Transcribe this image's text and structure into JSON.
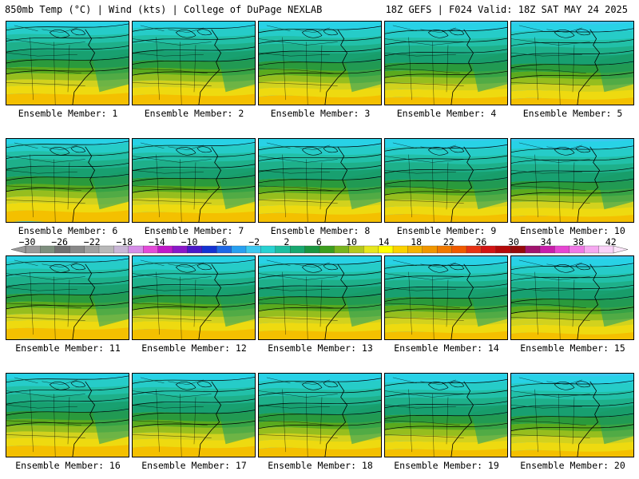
{
  "header": {
    "left_title": "850mb Temp (°C) | Wind (kts) | College of DuPage NEXLAB",
    "right_title": "18Z GEFS | F024 Valid: 18Z SAT MAY 24 2025"
  },
  "panels": [
    {
      "label": "Ensemble Member: 1"
    },
    {
      "label": "Ensemble Member: 2"
    },
    {
      "label": "Ensemble Member: 3"
    },
    {
      "label": "Ensemble Member: 4"
    },
    {
      "label": "Ensemble Member: 5"
    },
    {
      "label": "Ensemble Member: 6"
    },
    {
      "label": "Ensemble Member: 7"
    },
    {
      "label": "Ensemble Member: 8"
    },
    {
      "label": "Ensemble Member: 9"
    },
    {
      "label": "Ensemble Member: 10"
    },
    {
      "label": "Ensemble Member: 11"
    },
    {
      "label": "Ensemble Member: 12"
    },
    {
      "label": "Ensemble Member: 13"
    },
    {
      "label": "Ensemble Member: 14"
    },
    {
      "label": "Ensemble Member: 15"
    },
    {
      "label": "Ensemble Member: 16"
    },
    {
      "label": "Ensemble Member: 17"
    },
    {
      "label": "Ensemble Member: 18"
    },
    {
      "label": "Ensemble Member: 19"
    },
    {
      "label": "Ensemble Member: 20"
    }
  ],
  "colorbar": {
    "tick_labels": [
      "−30",
      "−26",
      "−22",
      "−18",
      "−14",
      "−10",
      "−6",
      "−2",
      "2",
      "6",
      "10",
      "14",
      "18",
      "22",
      "26",
      "30",
      "34",
      "38",
      "42"
    ],
    "colors": [
      "#9a9a9a",
      "#7e8f7e",
      "#707070",
      "#888888",
      "#a0a0a0",
      "#b8b8b8",
      "#c9b6d6",
      "#d68ee8",
      "#e34bd8",
      "#c019c8",
      "#8a18c8",
      "#4a18c8",
      "#1432d2",
      "#1e68e6",
      "#28a0f0",
      "#3cc8f0",
      "#28d2d2",
      "#1ebea0",
      "#18a870",
      "#1a9640",
      "#3c9e1e",
      "#78b41e",
      "#b4c81e",
      "#e6e61e",
      "#ffff00",
      "#fad200",
      "#f5b400",
      "#f09600",
      "#f07800",
      "#f05a00",
      "#e63214",
      "#d21414",
      "#b40a0a",
      "#960a0a",
      "#a0146e",
      "#c81eaa",
      "#e646d2",
      "#f078e6",
      "#f5a8f0",
      "#fad2f8"
    ]
  }
}
